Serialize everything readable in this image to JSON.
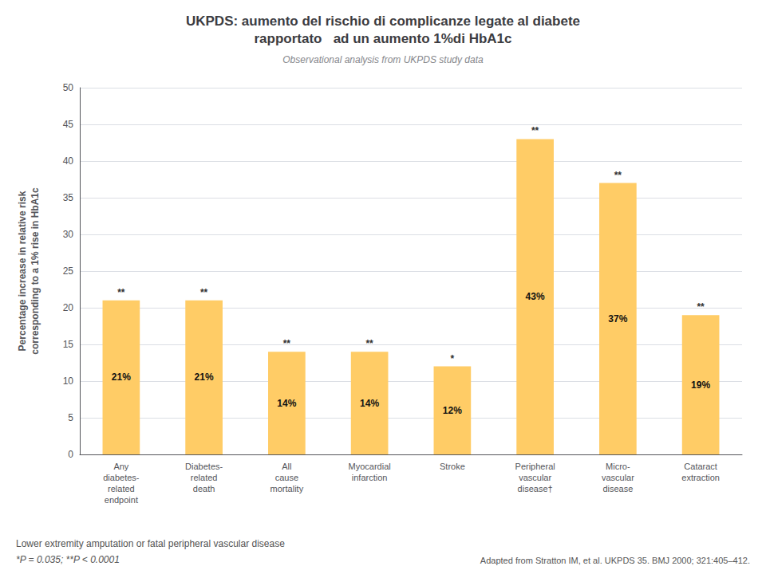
{
  "chart_data": {
    "type": "bar",
    "title": "UKPDS: aumento del rischio di complicanze legate al diabete\nrapportato   ad un aumento 1%di HbA1c",
    "subtitle": "Observational analysis from UKPDS study data",
    "ylabel": "Percentage increase in relative risk\ncorresponding to a 1% rise in HbA1c",
    "categories": [
      "Any\ndiabetes-\nrelated\nendpoint",
      "Diabetes-\nrelated\ndeath",
      "All\ncause\nmortality",
      "Myocardial\ninfarction",
      "Stroke",
      "Peripheral\nvascular\ndisease†",
      "Micro-\nvascular\ndisease",
      "Cataract\nextraction"
    ],
    "values": [
      21,
      21,
      14,
      14,
      12,
      43,
      37,
      19
    ],
    "value_labels": [
      "21%",
      "21%",
      "14%",
      "14%",
      "12%",
      "43%",
      "37%",
      "19%"
    ],
    "significance": [
      "**",
      "**",
      "**",
      "**",
      "*",
      "**",
      "**",
      "**"
    ],
    "color": "#FFCC66",
    "ylim": [
      0,
      50
    ],
    "yticks": [
      0,
      5,
      10,
      15,
      20,
      25,
      30,
      35,
      40,
      45,
      50
    ],
    "grid": true,
    "data_labels": true,
    "notes": [
      "Lower extremity amputation or fatal peripheral vascular disease",
      "*P = 0.035; **P < 0.0001",
      "Adapted from Stratton IM, et al. UKPDS 35. BMJ 2000; 321:405–412."
    ]
  }
}
